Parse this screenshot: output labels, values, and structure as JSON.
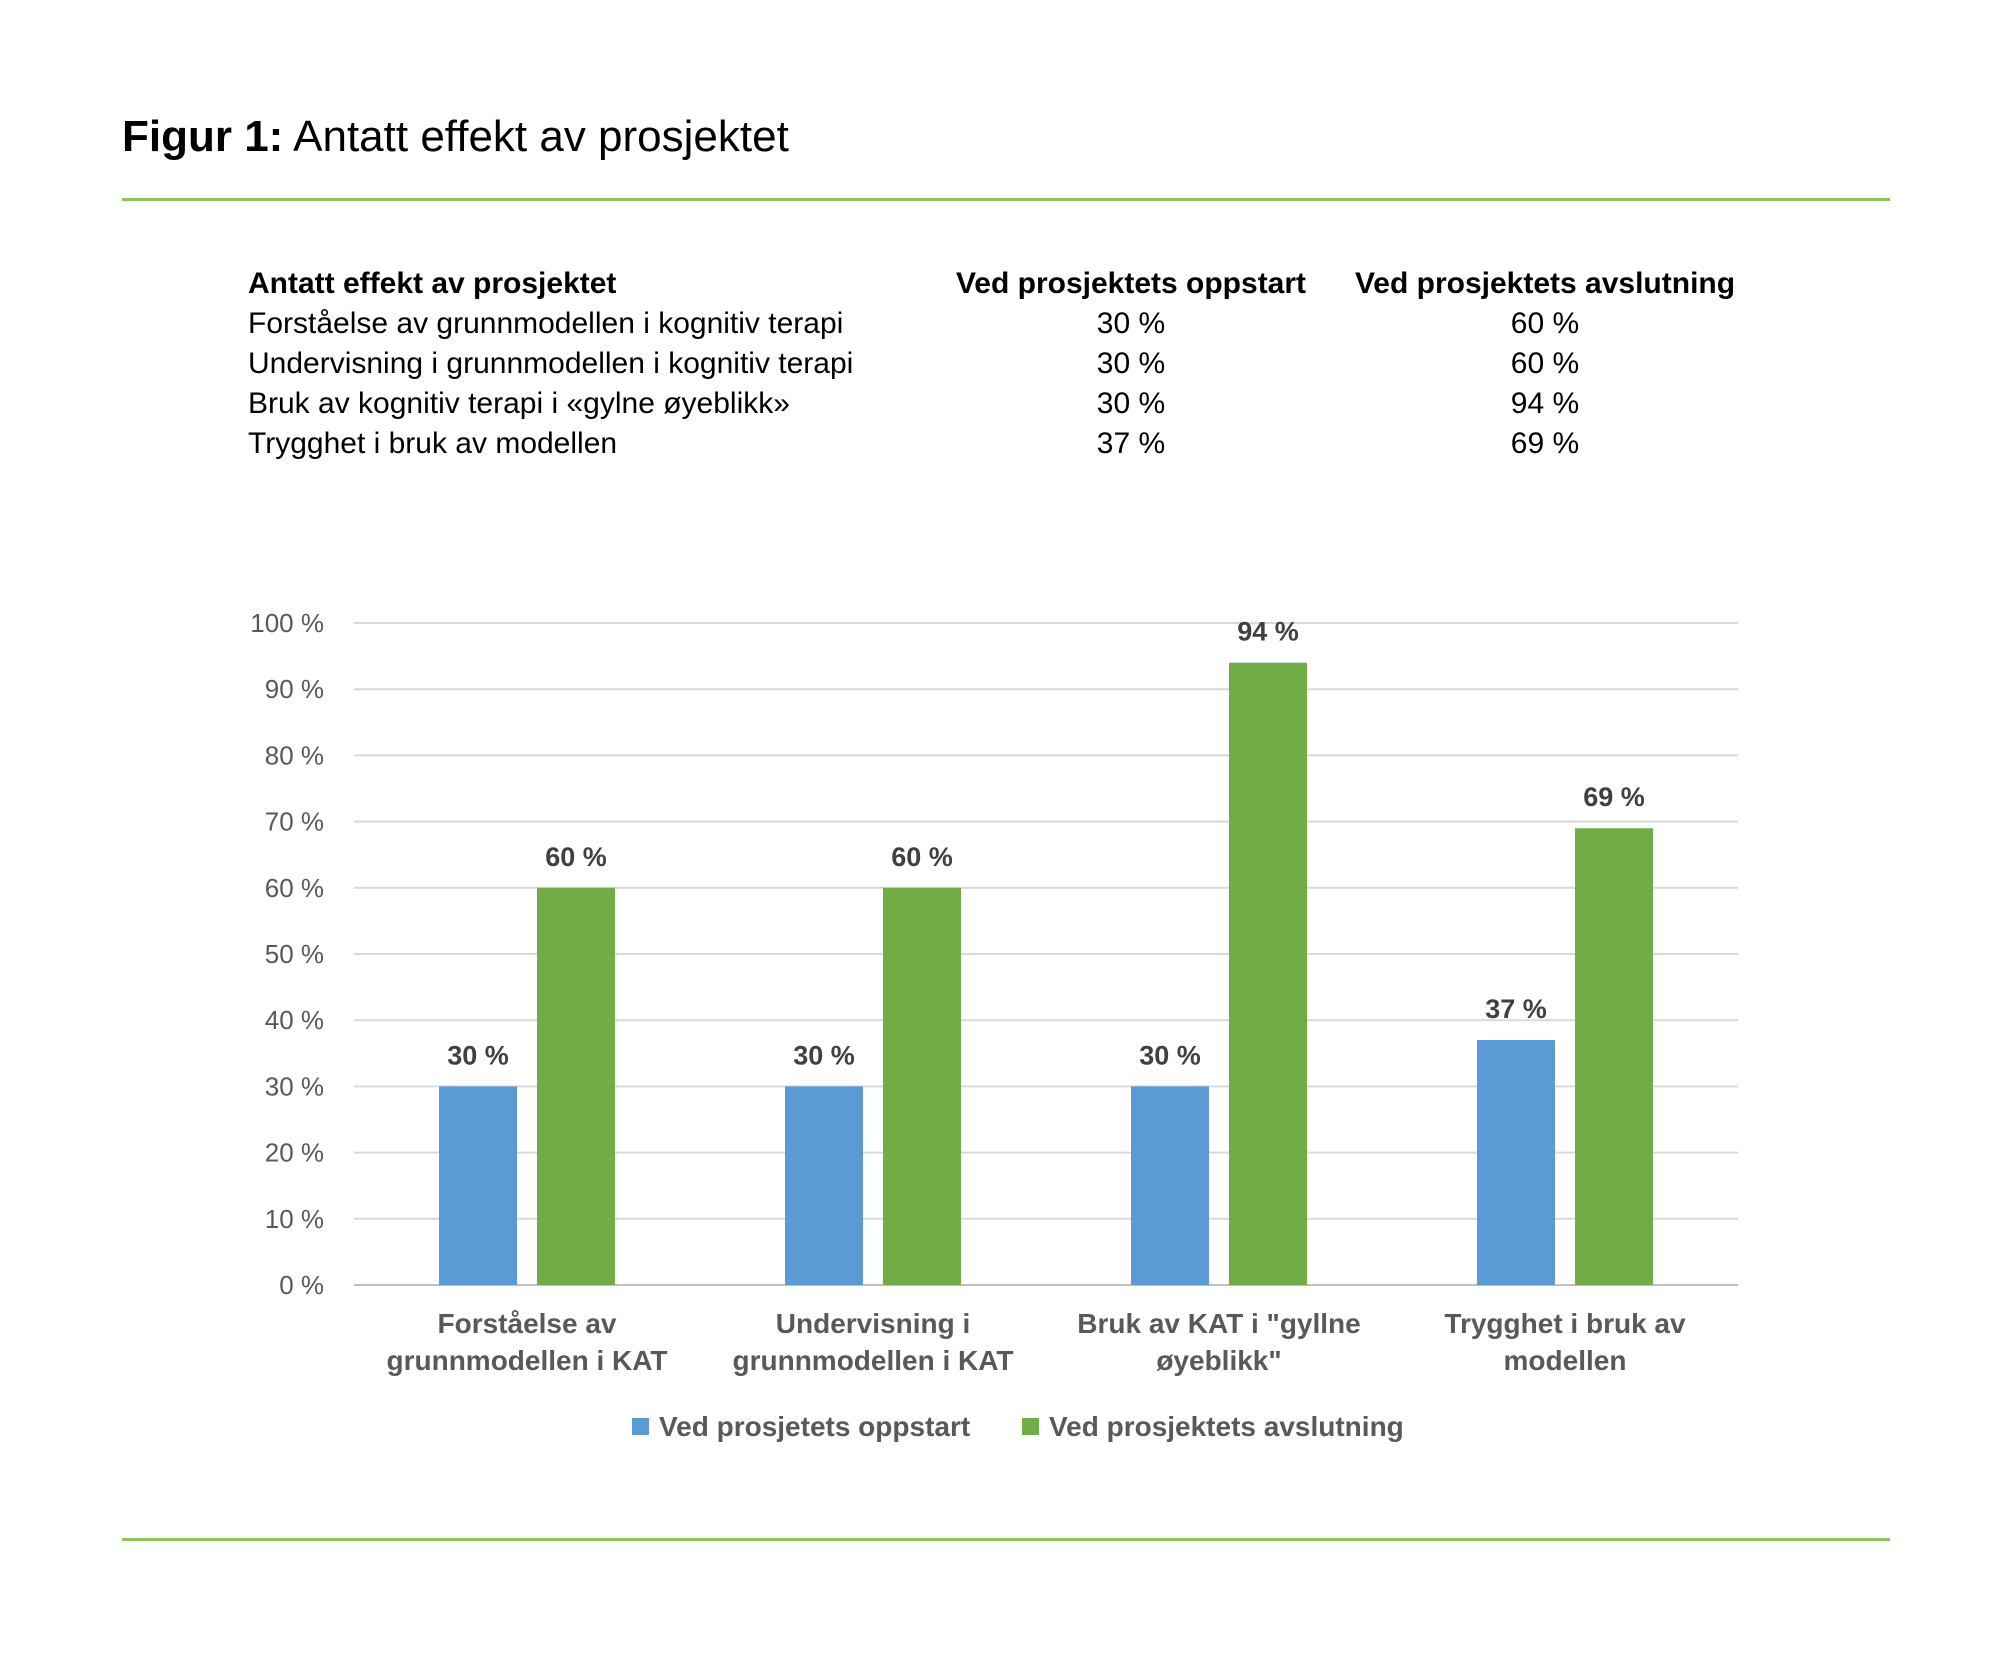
{
  "figure": {
    "label": "Figur 1:",
    "title": "Antatt effekt av prosjektet"
  },
  "colors": {
    "rule": "#8DC65A",
    "series_start": "#5B9BD5",
    "series_end": "#70AD47",
    "grid": "#D9D9D9",
    "axis": "#BFBFBF"
  },
  "table": {
    "headers": [
      "Antatt effekt av prosjektet",
      "Ved prosjektets oppstart",
      "Ved prosjektets avslutning"
    ],
    "rows": [
      [
        "Forståelse av grunnmodellen i kognitiv terapi",
        "30 %",
        "60 %"
      ],
      [
        "Undervisning i grunnmodellen i kognitiv terapi",
        "30 %",
        "60 %"
      ],
      [
        "Bruk av kognitiv terapi i «gylne øyeblikk»",
        "30 %",
        "94 %"
      ],
      [
        "Trygghet i bruk av modellen",
        "37 %",
        "69 %"
      ]
    ]
  },
  "chart_data": {
    "type": "bar",
    "title": "",
    "xlabel": "",
    "ylabel": "",
    "ylim": [
      0,
      100
    ],
    "yticks": [
      0,
      10,
      20,
      30,
      40,
      50,
      60,
      70,
      80,
      90,
      100
    ],
    "ytick_labels": [
      "0 %",
      "10 %",
      "20 %",
      "30 %",
      "40 %",
      "50 %",
      "60 %",
      "70 %",
      "80 %",
      "90 %",
      "100 %"
    ],
    "grid": true,
    "legend_position": "bottom",
    "categories": [
      [
        "Forståelse av",
        "grunnmodellen i KAT"
      ],
      [
        "Undervisning i",
        "grunnmodellen i KAT"
      ],
      [
        "Bruk av KAT i \"gyllne",
        "øyeblikk\""
      ],
      [
        "Trygghet i bruk av",
        "modellen"
      ]
    ],
    "series": [
      {
        "name": "Ved prosjetets oppstart",
        "values": [
          30,
          30,
          30,
          37
        ],
        "labels": [
          "30 %",
          "30 %",
          "30 %",
          "37 %"
        ]
      },
      {
        "name": "Ved prosjektets avslutning",
        "values": [
          60,
          60,
          94,
          69
        ],
        "labels": [
          "60 %",
          "60 %",
          "94 %",
          "69 %"
        ]
      }
    ]
  }
}
